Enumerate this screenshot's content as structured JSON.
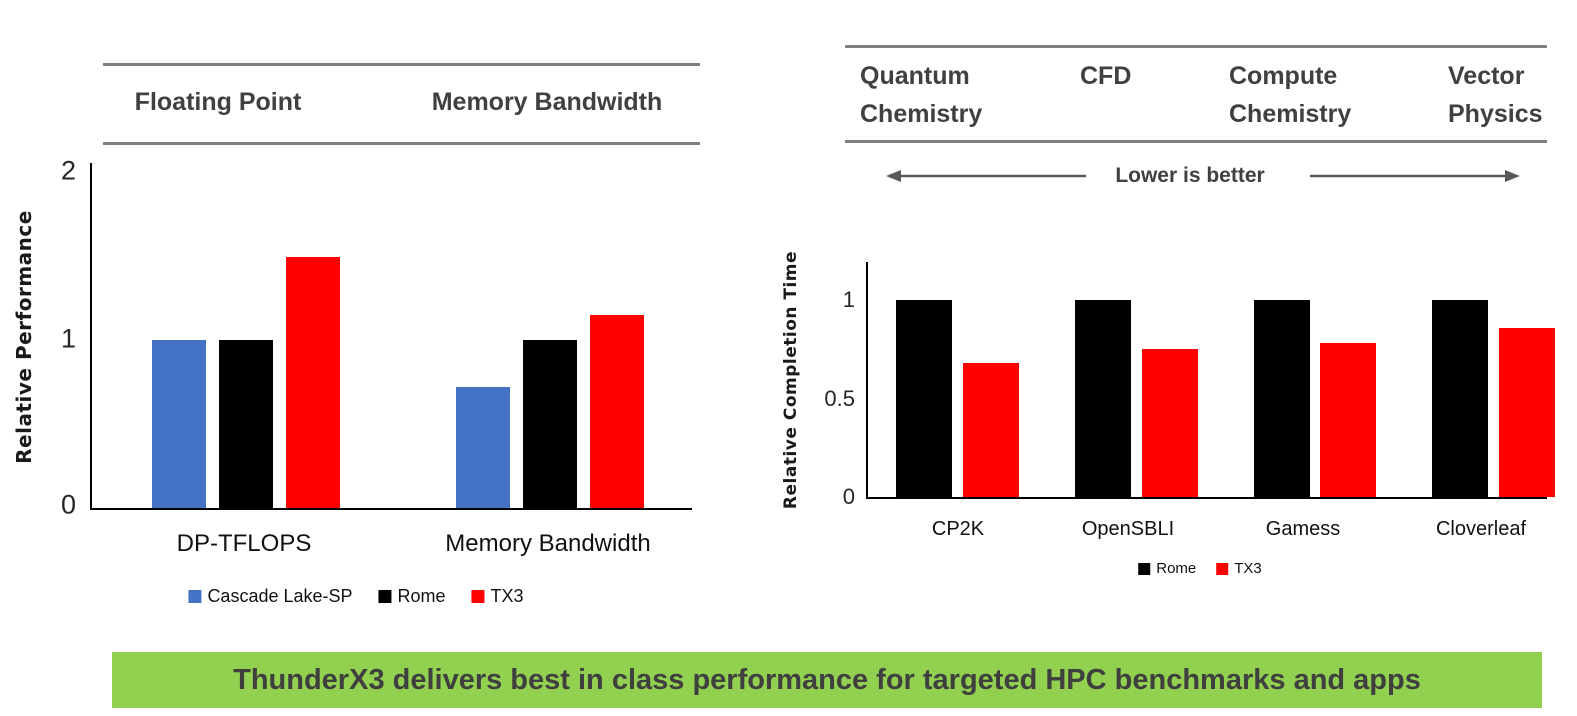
{
  "banner": {
    "text": "ThunderX3 delivers best in class performance for targeted HPC benchmarks and apps",
    "bg_color": "#92D050",
    "text_color": "#3F3F3F"
  },
  "colors": {
    "cascade_lake_sp": "#4472C4",
    "rome": "#000000",
    "tx3": "#FF0000",
    "header_rule": "#7f7f7f",
    "arrow": "#595959",
    "header_text": "#404040"
  },
  "chart_data": [
    {
      "type": "bar",
      "title": "Floating Point / Memory Bandwidth",
      "group_headers": [
        "Floating Point",
        "Memory Bandwidth"
      ],
      "categories": [
        "DP-TFLOPS",
        "Memory Bandwidth"
      ],
      "series": [
        {
          "name": "Cascade Lake-SP",
          "color": "#4472C4",
          "values": [
            1.0,
            0.72
          ]
        },
        {
          "name": "Rome",
          "color": "#000000",
          "values": [
            1.0,
            1.0
          ]
        },
        {
          "name": "TX3",
          "color": "#FF0000",
          "values": [
            1.5,
            1.15
          ]
        }
      ],
      "xlabel": "",
      "ylabel": "Relative Performance",
      "yticks": [
        0,
        1,
        2
      ],
      "ylim": [
        0,
        2.06
      ],
      "grid": false,
      "legend_position": "bottom"
    },
    {
      "type": "bar",
      "title": "HPC application benchmarks",
      "header_columns": [
        "Quantum Chemistry",
        "CFD",
        "Compute Chemistry",
        "Vector Physics"
      ],
      "annotation": "Lower is better",
      "categories": [
        "CP2K",
        "OpenSBLI",
        "Gamess",
        "Cloverleaf"
      ],
      "series": [
        {
          "name": "Rome",
          "color": "#000000",
          "values": [
            1.0,
            1.0,
            1.0,
            1.0
          ]
        },
        {
          "name": "TX3",
          "color": "#FF0000",
          "values": [
            0.68,
            0.75,
            0.78,
            0.86
          ]
        }
      ],
      "xlabel": "",
      "ylabel": "Relative Completion Time",
      "yticks": [
        0,
        0.5,
        1
      ],
      "ylim": [
        0,
        1.19
      ],
      "grid": false,
      "legend_position": "bottom"
    }
  ]
}
